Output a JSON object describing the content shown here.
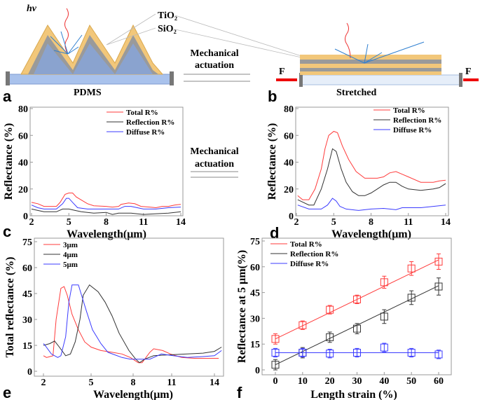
{
  "diagram": {
    "photon_label": "hν",
    "layer_top": "TiO₂",
    "layer_bottom": "SiO₂",
    "actuation_line1": "Mechanical",
    "actuation_line2": "actuation",
    "substrate_label": "PDMS",
    "stretched_label": "Stretched",
    "force_left": "F",
    "force_right": "F",
    "panel_a": "a",
    "panel_b": "b"
  },
  "middle_arrow": {
    "line1": "Mechanical",
    "line2": "actuation"
  },
  "colors": {
    "total": "#ff3b3b",
    "reflection": "#333333",
    "diffuse": "#3b3bff"
  },
  "chart_data": [
    {
      "panel": "c",
      "type": "line",
      "xlabel": "Wavelength(μm)",
      "ylabel": "Reflectance (%)",
      "xlim": [
        2,
        14
      ],
      "ylim": [
        0,
        80
      ],
      "xticks": [
        2,
        5,
        8,
        11,
        14
      ],
      "yticks": [
        0,
        20,
        40,
        60,
        80
      ],
      "legend": "top-right",
      "series": [
        {
          "name": "Total R%",
          "color": "#ff3b3b",
          "points": [
            [
              2,
              10
            ],
            [
              2.5,
              9
            ],
            [
              3,
              7
            ],
            [
              4,
              7
            ],
            [
              4.3,
              10
            ],
            [
              4.7,
              16
            ],
            [
              5,
              17
            ],
            [
              5.3,
              17
            ],
            [
              5.6,
              14
            ],
            [
              6.5,
              9
            ],
            [
              7,
              7.5
            ],
            [
              8,
              7
            ],
            [
              8.5,
              6.5
            ],
            [
              9,
              7
            ],
            [
              9.2,
              8.5
            ],
            [
              9.8,
              9.5
            ],
            [
              10.3,
              9
            ],
            [
              10.8,
              7
            ],
            [
              11.5,
              6.5
            ],
            [
              12,
              6
            ],
            [
              12.5,
              7
            ],
            [
              13,
              7
            ],
            [
              13.5,
              8
            ],
            [
              14,
              8.5
            ]
          ]
        },
        {
          "name": "Reflection R%",
          "color": "#333333",
          "points": [
            [
              2,
              5
            ],
            [
              2.5,
              4
            ],
            [
              3,
              3
            ],
            [
              4,
              3
            ],
            [
              4.5,
              5
            ],
            [
              5,
              5
            ],
            [
              5.5,
              4
            ],
            [
              6,
              3
            ],
            [
              7,
              2
            ],
            [
              8,
              2.5
            ],
            [
              8.5,
              1
            ],
            [
              9,
              2
            ],
            [
              10,
              2
            ],
            [
              11,
              1
            ],
            [
              12,
              1.5
            ],
            [
              13,
              2
            ],
            [
              14,
              3
            ]
          ]
        },
        {
          "name": "Diffuse R%",
          "color": "#3b3bff",
          "points": [
            [
              2,
              8
            ],
            [
              2.5,
              6
            ],
            [
              3,
              5
            ],
            [
              4,
              5
            ],
            [
              4.5,
              9
            ],
            [
              4.8,
              13
            ],
            [
              5,
              13
            ],
            [
              5.3,
              10
            ],
            [
              5.7,
              6
            ],
            [
              6.5,
              5
            ],
            [
              8,
              5
            ],
            [
              9,
              5
            ],
            [
              9.5,
              7
            ],
            [
              10,
              7
            ],
            [
              10.5,
              6
            ],
            [
              11,
              5
            ],
            [
              12,
              5
            ],
            [
              13,
              6
            ],
            [
              14,
              6.5
            ]
          ]
        }
      ]
    },
    {
      "panel": "d",
      "type": "line",
      "xlabel": "Wavelength(μm)",
      "ylabel": "Reflectance (%)",
      "xlim": [
        2,
        14
      ],
      "ylim": [
        0,
        80
      ],
      "xticks": [
        2,
        5,
        8,
        11,
        14
      ],
      "yticks": [
        0,
        20,
        40,
        60,
        80
      ],
      "legend": "top-right",
      "series": [
        {
          "name": "Total R%",
          "color": "#ff3b3b",
          "points": [
            [
              2.1,
              15
            ],
            [
              2.5,
              12
            ],
            [
              3,
              12
            ],
            [
              3.5,
              20
            ],
            [
              4,
              35
            ],
            [
              4.3,
              50
            ],
            [
              4.6,
              60
            ],
            [
              5,
              63
            ],
            [
              5.3,
              62
            ],
            [
              5.7,
              52
            ],
            [
              6.2,
              42
            ],
            [
              6.8,
              33
            ],
            [
              7.5,
              28
            ],
            [
              8.5,
              28
            ],
            [
              9,
              29
            ],
            [
              9.5,
              32
            ],
            [
              10,
              33
            ],
            [
              10.5,
              31
            ],
            [
              11,
              29
            ],
            [
              12,
              25
            ],
            [
              13,
              25
            ],
            [
              13.5,
              26
            ],
            [
              14,
              26.5
            ]
          ]
        },
        {
          "name": "Reflection R%",
          "color": "#333333",
          "points": [
            [
              2.1,
              12
            ],
            [
              3,
              8
            ],
            [
              3.4,
              8
            ],
            [
              4,
              20
            ],
            [
              4.5,
              35
            ],
            [
              4.9,
              50
            ],
            [
              5.2,
              48
            ],
            [
              5.6,
              35
            ],
            [
              6,
              25
            ],
            [
              6.5,
              18
            ],
            [
              7,
              15
            ],
            [
              7.5,
              15
            ],
            [
              8,
              17
            ],
            [
              8.5,
              20
            ],
            [
              9,
              23
            ],
            [
              9.5,
              25
            ],
            [
              10,
              25
            ],
            [
              10.5,
              22
            ],
            [
              11,
              20
            ],
            [
              12,
              19
            ],
            [
              13,
              20
            ],
            [
              13.5,
              21
            ],
            [
              14,
              24
            ]
          ]
        },
        {
          "name": "Diffuse R%",
          "color": "#3b3bff",
          "points": [
            [
              2.1,
              8
            ],
            [
              3,
              5
            ],
            [
              4,
              5
            ],
            [
              4.5,
              8
            ],
            [
              4.9,
              13
            ],
            [
              5.2,
              11
            ],
            [
              5.5,
              7
            ],
            [
              6,
              5
            ],
            [
              7,
              4
            ],
            [
              8,
              5
            ],
            [
              9,
              5.5
            ],
            [
              9.5,
              5
            ],
            [
              10,
              4.5
            ],
            [
              10.5,
              6
            ],
            [
              11,
              6
            ],
            [
              12,
              6
            ],
            [
              13,
              7
            ],
            [
              14,
              8
            ]
          ]
        }
      ]
    },
    {
      "panel": "e",
      "type": "line",
      "xlabel": "Wavelength(μm)",
      "ylabel": "Total reflectance (%)",
      "xlim": [
        2,
        14.8
      ],
      "ylim": [
        0,
        75
      ],
      "xticks": [
        2,
        5,
        8,
        11,
        14
      ],
      "yticks": [
        0,
        15,
        30,
        45,
        60,
        75
      ],
      "legend": "top-left",
      "series": [
        {
          "name": "3μm",
          "color": "#ff3b3b",
          "points": [
            [
              2,
              9
            ],
            [
              2.2,
              8
            ],
            [
              2.6,
              9
            ],
            [
              2.8,
              30
            ],
            [
              3.1,
              48
            ],
            [
              3.3,
              49
            ],
            [
              3.5,
              44
            ],
            [
              3.8,
              33
            ],
            [
              4.2,
              24
            ],
            [
              4.6,
              17
            ],
            [
              5,
              14
            ],
            [
              5.7,
              12
            ],
            [
              6.5,
              11
            ],
            [
              7.2,
              10
            ],
            [
              7.8,
              8
            ],
            [
              8.4,
              5
            ],
            [
              8.7,
              5
            ],
            [
              9,
              8
            ],
            [
              9.3,
              11
            ],
            [
              9.6,
              13
            ],
            [
              10.3,
              12
            ],
            [
              10.9,
              10
            ],
            [
              11.7,
              8
            ],
            [
              12.6,
              7.5
            ],
            [
              14.3,
              7.5
            ]
          ]
        },
        {
          "name": "4μm",
          "color": "#333333",
          "points": [
            [
              2,
              15
            ],
            [
              2.4,
              16
            ],
            [
              2.7,
              17.5
            ],
            [
              3,
              14
            ],
            [
              3.4,
              9
            ],
            [
              3.7,
              10
            ],
            [
              4,
              17
            ],
            [
              4.3,
              30
            ],
            [
              4.5,
              44
            ],
            [
              4.9,
              50
            ],
            [
              5.5,
              46
            ],
            [
              6,
              40
            ],
            [
              6.5,
              32
            ],
            [
              7,
              22
            ],
            [
              7.7,
              12
            ],
            [
              8.2,
              7
            ],
            [
              8.5,
              5
            ],
            [
              8.9,
              7
            ],
            [
              9.6,
              9
            ],
            [
              10.7,
              9.5
            ],
            [
              12.1,
              10
            ],
            [
              13.2,
              10.5
            ],
            [
              14,
              11.5
            ],
            [
              14.5,
              14
            ]
          ]
        },
        {
          "name": "5μm",
          "color": "#3b3bff",
          "points": [
            [
              2,
              16
            ],
            [
              2.1,
              15
            ],
            [
              2.5,
              10
            ],
            [
              2.9,
              8
            ],
            [
              3.1,
              9
            ],
            [
              3.4,
              20
            ],
            [
              3.6,
              40
            ],
            [
              3.8,
              50
            ],
            [
              4.2,
              50
            ],
            [
              4.4,
              44
            ],
            [
              4.7,
              35
            ],
            [
              5.1,
              24
            ],
            [
              5.7,
              16
            ],
            [
              6.2,
              11
            ],
            [
              7.2,
              8
            ],
            [
              7.8,
              7
            ],
            [
              9.3,
              7
            ],
            [
              9.6,
              8
            ],
            [
              10.2,
              10
            ],
            [
              11.1,
              9
            ],
            [
              12.1,
              8
            ],
            [
              13.2,
              8.5
            ],
            [
              14,
              9
            ],
            [
              14.5,
              12
            ]
          ]
        }
      ]
    },
    {
      "panel": "f",
      "type": "scatter",
      "xlabel": "Length strain (%)",
      "ylabel": "Reflectance at 5 μm(%)",
      "xlim": [
        -5,
        65
      ],
      "ylim": [
        0,
        75
      ],
      "xticks": [
        0,
        10,
        20,
        30,
        40,
        50,
        60
      ],
      "yticks": [
        0,
        15,
        30,
        45,
        60,
        75
      ],
      "legend": "top-left",
      "x": [
        0,
        10,
        20,
        30,
        40,
        50,
        60
      ],
      "series": [
        {
          "name": "Total R%",
          "color": "#ff3b3b",
          "values": [
            18,
            26,
            35,
            41,
            51,
            59,
            63
          ],
          "errors": [
            3,
            2.5,
            2.5,
            2.5,
            3.5,
            4,
            4.5
          ],
          "fit": [
            18,
            64
          ]
        },
        {
          "name": "Reflection R%",
          "color": "#333333",
          "values": [
            3,
            10,
            19,
            24,
            31,
            42,
            48.5
          ],
          "errors": [
            3,
            3,
            3,
            3,
            4,
            4,
            5
          ],
          "fit": [
            3,
            49
          ]
        },
        {
          "name": "Diffuse R%",
          "color": "#3b3bff",
          "values": [
            10,
            10,
            9.5,
            10,
            13,
            10,
            9
          ],
          "errors": [
            2.5,
            2.5,
            2.5,
            2.5,
            2.5,
            2.5,
            2.5
          ],
          "fit": [
            10,
            10
          ]
        }
      ]
    }
  ]
}
